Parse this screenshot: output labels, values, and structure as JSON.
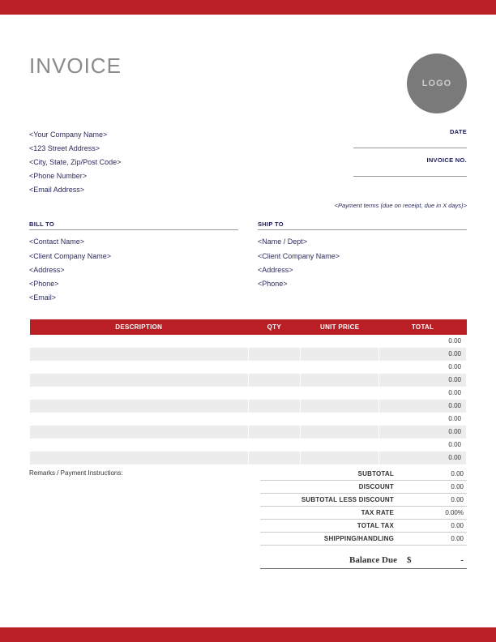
{
  "colors": {
    "accent": "#b91f24",
    "logo_bg": "#7a7a7a",
    "logo_text": "#cccccc",
    "title_gray": "#8a8a8a",
    "text_navy": "#2a2a5a",
    "row_alt": "#ececec"
  },
  "header": {
    "title": "INVOICE",
    "logo_text": "LOGO"
  },
  "company": {
    "name": "<Your Company Name>",
    "street": "<123 Street Address>",
    "city": "<City, State, Zip/Post Code>",
    "phone": "<Phone Number>",
    "email": "<Email Address>"
  },
  "meta": {
    "date_label": "DATE",
    "invoice_no_label": "INVOICE NO.",
    "payment_terms": "<Payment terms (due on receipt, due in X days)>"
  },
  "bill_to": {
    "label": "BILL TO",
    "contact": "<Contact Name>",
    "company": "<Client Company Name>",
    "address": "<Address>",
    "phone": "<Phone>",
    "email": "<Email>"
  },
  "ship_to": {
    "label": "SHIP TO",
    "name": "<Name / Dept>",
    "company": "<Client Company Name>",
    "address": "<Address>",
    "phone": "<Phone>"
  },
  "table": {
    "headers": {
      "description": "DESCRIPTION",
      "qty": "QTY",
      "unit_price": "UNIT PRICE",
      "total": "TOTAL"
    },
    "rows": [
      {
        "total": "0.00"
      },
      {
        "total": "0.00"
      },
      {
        "total": "0.00"
      },
      {
        "total": "0.00"
      },
      {
        "total": "0.00"
      },
      {
        "total": "0.00"
      },
      {
        "total": "0.00"
      },
      {
        "total": "0.00"
      },
      {
        "total": "0.00"
      },
      {
        "total": "0.00"
      }
    ]
  },
  "remarks_label": "Remarks / Payment Instructions:",
  "summary": {
    "subtotal": {
      "label": "SUBTOTAL",
      "value": "0.00"
    },
    "discount": {
      "label": "DISCOUNT",
      "value": "0.00"
    },
    "subtotal_less": {
      "label": "SUBTOTAL LESS DISCOUNT",
      "value": "0.00"
    },
    "tax_rate": {
      "label": "TAX RATE",
      "value": "0.00%"
    },
    "total_tax": {
      "label": "TOTAL TAX",
      "value": "0.00"
    },
    "shipping": {
      "label": "SHIPPING/HANDLING",
      "value": "0.00"
    },
    "balance": {
      "label": "Balance Due",
      "currency": "$",
      "value": "-"
    }
  }
}
